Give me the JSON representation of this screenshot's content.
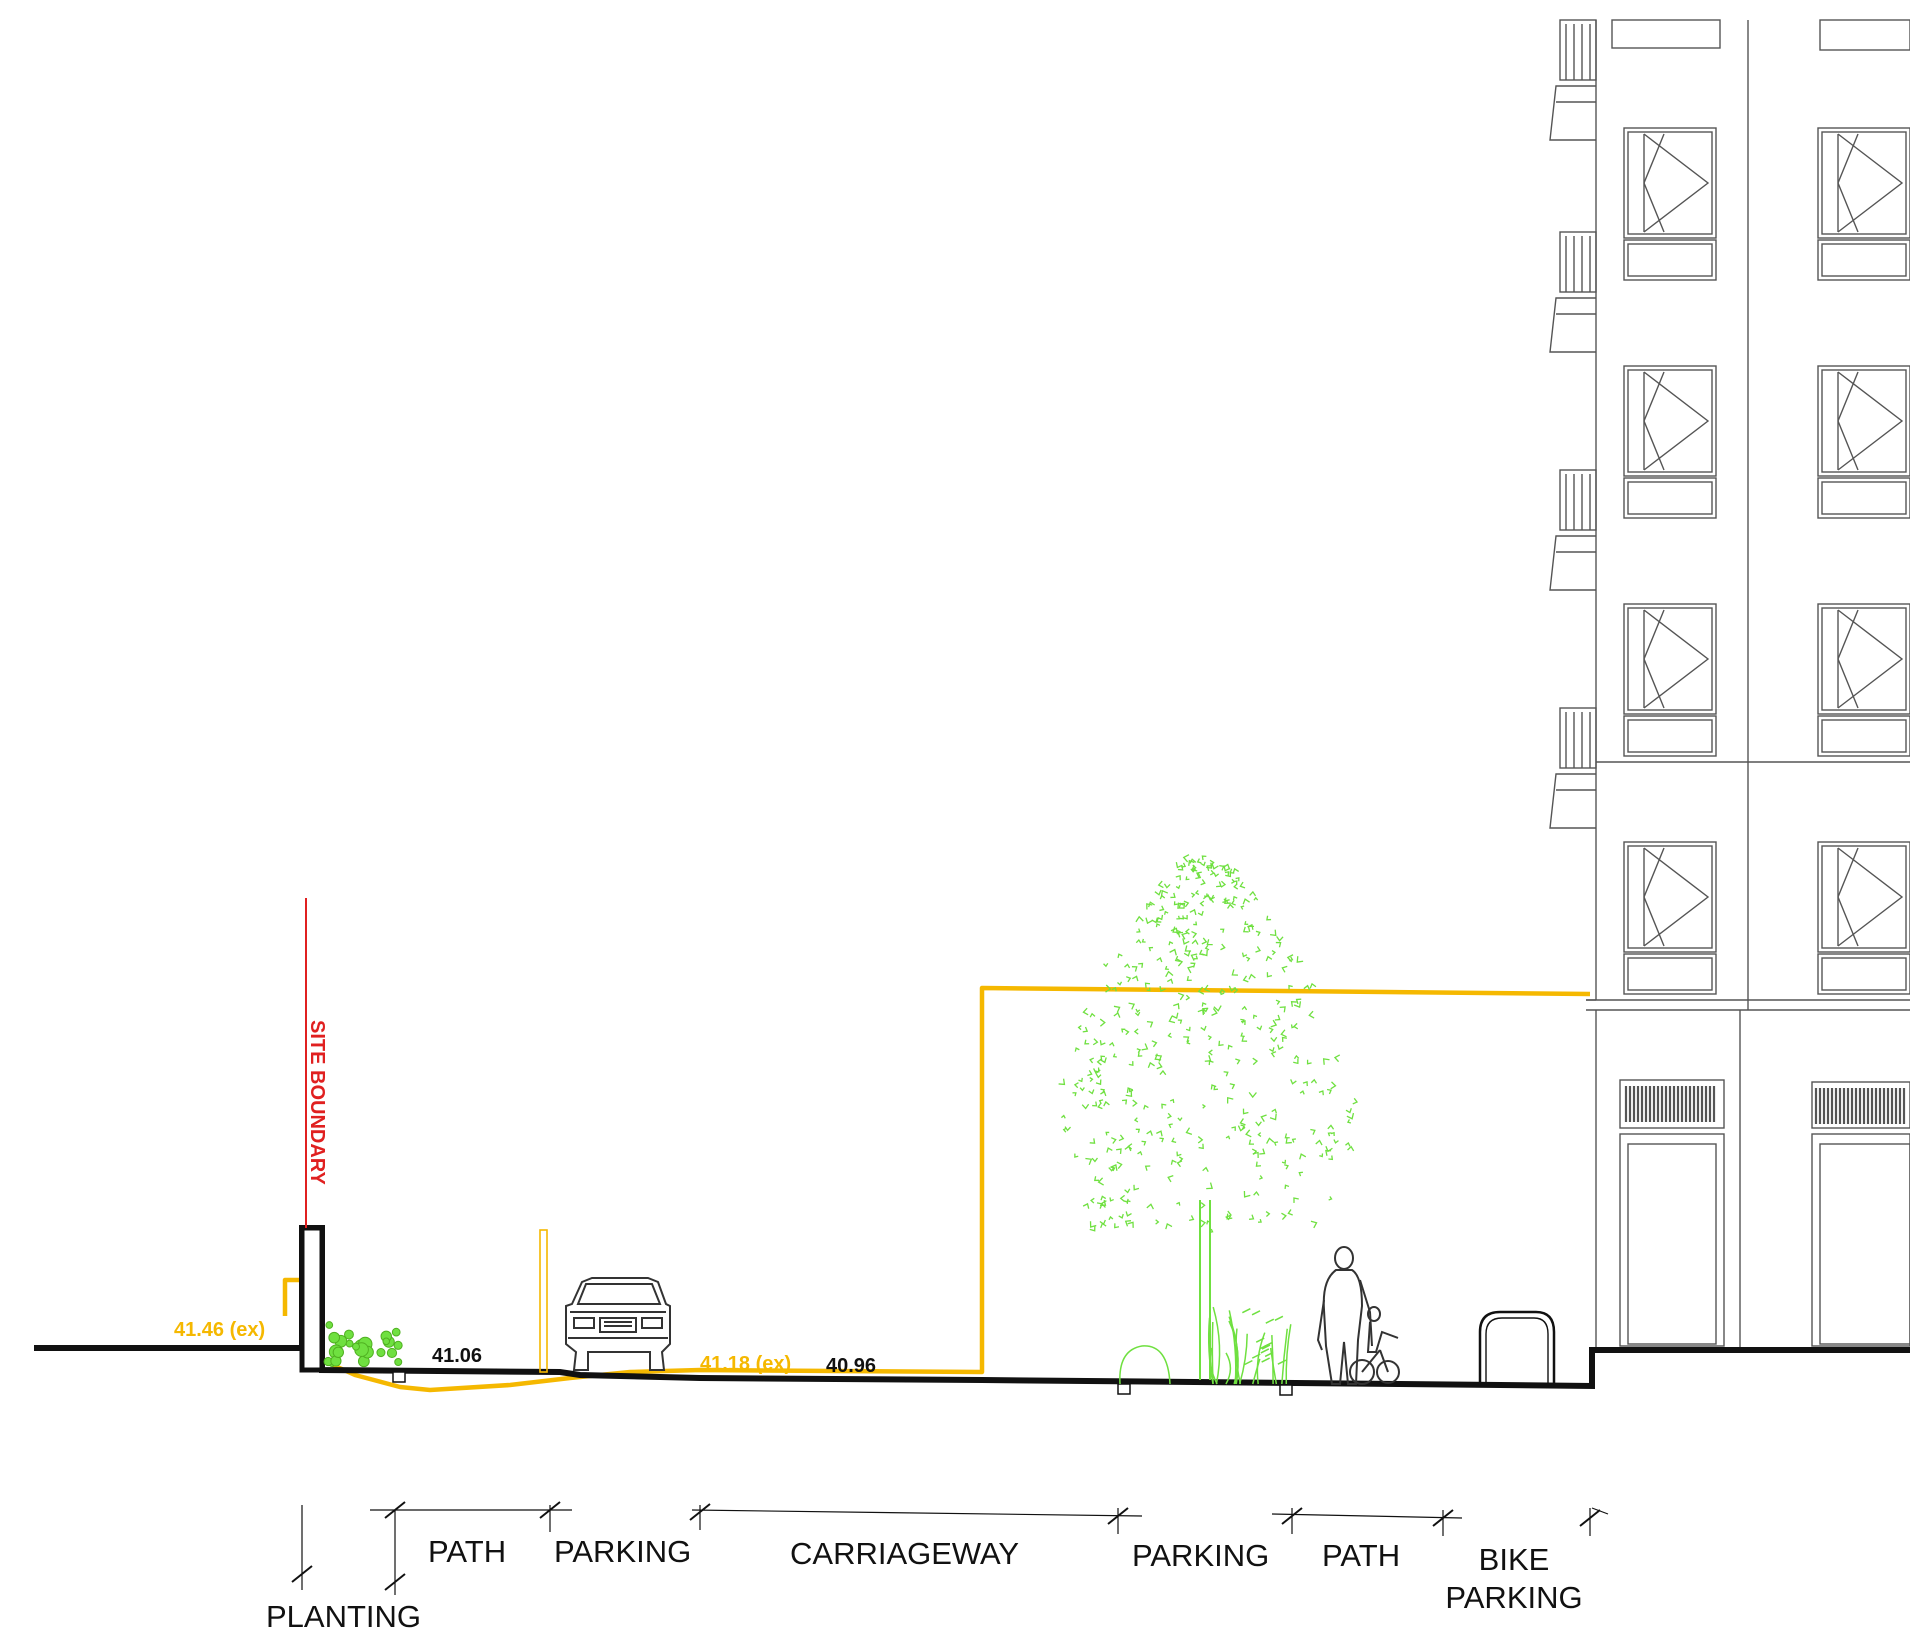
{
  "colors": {
    "ground": "#111111",
    "existing_level": "#f5b800",
    "site_boundary": "#e02020",
    "planting": "#6fe040",
    "building": "#555555"
  },
  "site_boundary": {
    "label": "SITE BOUNDARY"
  },
  "levels": [
    {
      "text": "41.46 (ex)",
      "kind": "existing"
    },
    {
      "text": "41.06",
      "kind": "proposed"
    },
    {
      "text": "41.18 (ex)",
      "kind": "existing"
    },
    {
      "text": "40.96",
      "kind": "proposed"
    }
  ],
  "zones": [
    {
      "line1": "PLANTING",
      "line2": ""
    },
    {
      "line1": "PATH",
      "line2": ""
    },
    {
      "line1": "PARKING",
      "line2": ""
    },
    {
      "line1": "CARRIAGEWAY",
      "line2": ""
    },
    {
      "line1": "PARKING",
      "line2": ""
    },
    {
      "line1": "PATH",
      "line2": ""
    },
    {
      "line1": "BIKE",
      "line2": "PARKING"
    }
  ],
  "icons": [
    "car-icon",
    "tree-icon",
    "shrub-icon",
    "pedestrian-with-child-icon",
    "bike-rack-icon",
    "building-elevation-icon"
  ]
}
